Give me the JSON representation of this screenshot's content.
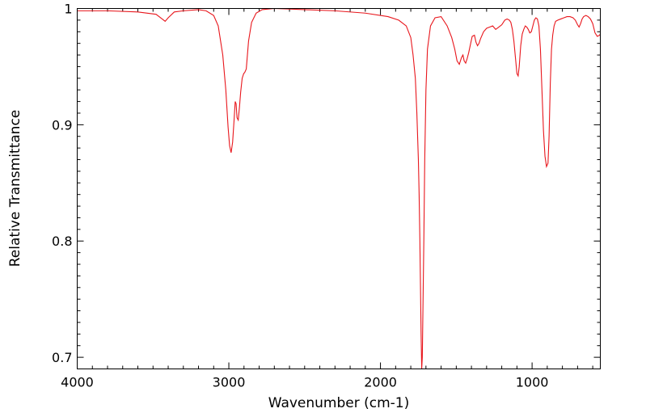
{
  "chart_data": {
    "type": "line",
    "title": "",
    "xlabel": "Wavenumber (cm-1)",
    "ylabel": "Relative Transmittance",
    "xlim": [
      4000,
      550
    ],
    "ylim": [
      0.69,
      1.0
    ],
    "x_reversed": true,
    "grid": false,
    "legend": "none",
    "x_ticks": [
      4000,
      3000,
      2000,
      1000
    ],
    "x_tick_labels": [
      "4000",
      "3000",
      "2000",
      "1000"
    ],
    "y_ticks": [
      1.0,
      0.9,
      0.8,
      0.7
    ],
    "y_tick_labels": [
      "1",
      "0.9",
      "0.8",
      "0.7"
    ],
    "line_color": "#e8161c",
    "series": [
      {
        "x": [
          4000,
          3800,
          3600,
          3480,
          3440,
          3420,
          3400,
          3360,
          3300,
          3200,
          3150,
          3100,
          3070,
          3040,
          3020,
          3005,
          2995,
          2985,
          2975,
          2965,
          2958,
          2952,
          2946,
          2938,
          2930,
          2922,
          2912,
          2902,
          2895,
          2885,
          2870,
          2850,
          2820,
          2780,
          2700,
          2500,
          2300,
          2100,
          1950,
          1880,
          1830,
          1800,
          1785,
          1770,
          1760,
          1750,
          1745,
          1740,
          1736,
          1732,
          1728,
          1724,
          1720,
          1714,
          1708,
          1700,
          1690,
          1670,
          1640,
          1600,
          1560,
          1530,
          1510,
          1495,
          1480,
          1465,
          1456,
          1448,
          1438,
          1428,
          1418,
          1405,
          1395,
          1380,
          1370,
          1360,
          1350,
          1340,
          1320,
          1300,
          1280,
          1260,
          1240,
          1220,
          1200,
          1180,
          1165,
          1150,
          1140,
          1130,
          1120,
          1110,
          1100,
          1092,
          1085,
          1075,
          1065,
          1055,
          1045,
          1035,
          1025,
          1015,
          1005,
          995,
          985,
          975,
          965,
          955,
          945,
          935,
          925,
          915,
          905,
          895,
          888,
          880,
          872,
          864,
          855,
          845,
          830,
          810,
          790,
          770,
          750,
          730,
          715,
          700,
          690,
          680,
          670,
          660,
          645,
          630,
          615,
          600,
          585,
          570,
          555,
          550
        ],
        "y": [
          0.998,
          0.998,
          0.997,
          0.995,
          0.991,
          0.989,
          0.992,
          0.997,
          0.998,
          0.999,
          0.998,
          0.994,
          0.985,
          0.96,
          0.93,
          0.898,
          0.882,
          0.876,
          0.885,
          0.905,
          0.92,
          0.918,
          0.906,
          0.904,
          0.915,
          0.928,
          0.94,
          0.944,
          0.945,
          0.948,
          0.972,
          0.988,
          0.996,
          0.999,
          1.0,
          0.999,
          0.998,
          0.996,
          0.993,
          0.99,
          0.985,
          0.975,
          0.96,
          0.94,
          0.91,
          0.87,
          0.84,
          0.8,
          0.76,
          0.72,
          0.69,
          0.7,
          0.74,
          0.8,
          0.87,
          0.93,
          0.965,
          0.985,
          0.992,
          0.993,
          0.985,
          0.975,
          0.965,
          0.955,
          0.952,
          0.958,
          0.96,
          0.955,
          0.953,
          0.957,
          0.962,
          0.97,
          0.976,
          0.977,
          0.971,
          0.968,
          0.97,
          0.974,
          0.98,
          0.983,
          0.984,
          0.985,
          0.982,
          0.984,
          0.986,
          0.99,
          0.991,
          0.99,
          0.988,
          0.982,
          0.972,
          0.958,
          0.944,
          0.942,
          0.95,
          0.968,
          0.978,
          0.982,
          0.985,
          0.984,
          0.982,
          0.979,
          0.98,
          0.985,
          0.99,
          0.992,
          0.991,
          0.985,
          0.965,
          0.93,
          0.895,
          0.873,
          0.864,
          0.867,
          0.89,
          0.935,
          0.965,
          0.977,
          0.985,
          0.989,
          0.99,
          0.991,
          0.992,
          0.993,
          0.993,
          0.992,
          0.99,
          0.986,
          0.984,
          0.987,
          0.991,
          0.993,
          0.994,
          0.993,
          0.991,
          0.987,
          0.979,
          0.976,
          0.977,
          0.978
        ]
      }
    ]
  }
}
